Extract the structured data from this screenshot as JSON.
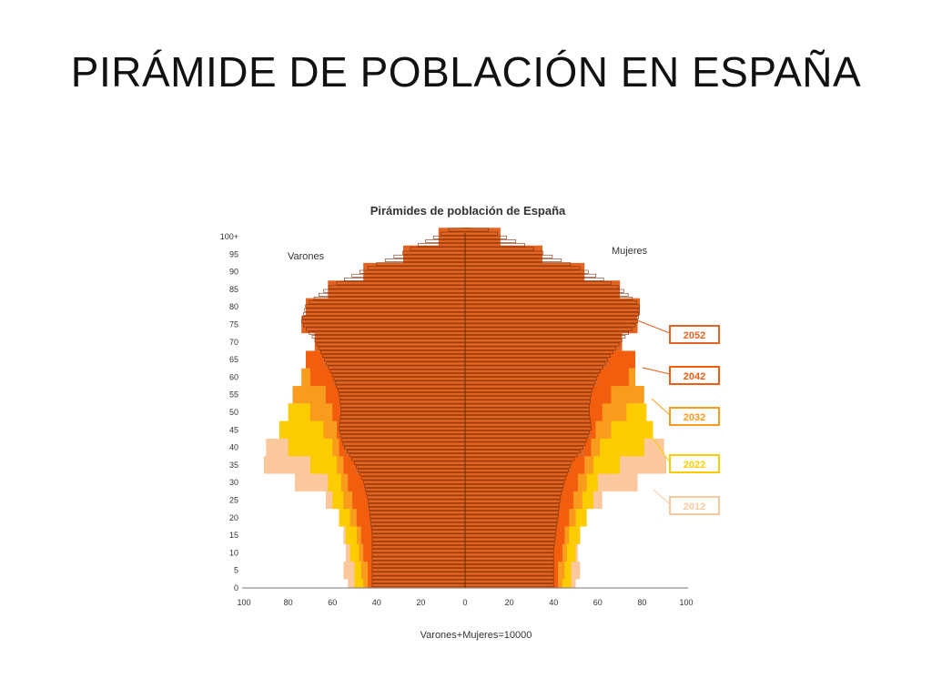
{
  "slide": {
    "title": "PIRÁMIDE DE POBLACIÓN EN ESPAÑA"
  },
  "chart_data": {
    "type": "population-pyramid",
    "title": "Pirámides de población de España",
    "left_label": "Varones",
    "right_label": "Mujeres",
    "xlabel": "Varones+Mujeres=10000",
    "xlim": [
      0,
      100
    ],
    "x_ticks": [
      "100",
      "80",
      "60",
      "40",
      "20",
      "0",
      "20",
      "40",
      "60",
      "80",
      "100"
    ],
    "y_ticks": [
      "0",
      "5",
      "10",
      "15",
      "20",
      "25",
      "30",
      "35",
      "40",
      "45",
      "50",
      "55",
      "60",
      "65",
      "70",
      "75",
      "80",
      "85",
      "90",
      "95",
      "100+"
    ],
    "ages": [
      0,
      5,
      10,
      15,
      20,
      25,
      30,
      35,
      40,
      45,
      50,
      55,
      60,
      65,
      70,
      75,
      80,
      85,
      90,
      95,
      100
    ],
    "legend_position": "right",
    "series": [
      {
        "name": "2012",
        "color": "#FBC89E",
        "male": [
          53,
          55,
          54,
          55,
          57,
          63,
          77,
          91,
          90,
          80,
          70,
          62,
          55,
          46,
          36,
          24,
          16,
          10,
          6,
          3,
          1
        ],
        "female": [
          50,
          52,
          51,
          52,
          55,
          62,
          78,
          91,
          90,
          80,
          71,
          64,
          58,
          51,
          44,
          34,
          26,
          18,
          11,
          5,
          2
        ]
      },
      {
        "name": "2022",
        "color": "#FDCC00",
        "male": [
          50,
          50,
          52,
          54,
          57,
          60,
          62,
          70,
          80,
          84,
          80,
          74,
          64,
          54,
          42,
          30,
          20,
          12,
          7,
          3,
          1
        ],
        "female": [
          48,
          48,
          50,
          52,
          55,
          58,
          60,
          70,
          81,
          85,
          82,
          76,
          67,
          58,
          48,
          38,
          28,
          19,
          11,
          5,
          2
        ]
      },
      {
        "name": "2032",
        "color": "#F99B1C",
        "male": [
          46,
          47,
          48,
          49,
          52,
          55,
          56,
          58,
          60,
          64,
          70,
          78,
          74,
          63,
          50,
          36,
          24,
          15,
          8,
          4,
          1
        ],
        "female": [
          44,
          45,
          46,
          47,
          50,
          53,
          55,
          58,
          61,
          66,
          73,
          81,
          77,
          67,
          56,
          44,
          33,
          22,
          13,
          6,
          2
        ]
      },
      {
        "name": "2042",
        "color": "#F25E0D",
        "male": [
          44,
          44,
          46,
          47,
          49,
          51,
          53,
          55,
          57,
          58,
          60,
          63,
          70,
          72,
          60,
          45,
          30,
          19,
          10,
          5,
          1
        ],
        "female": [
          42,
          42,
          44,
          45,
          47,
          49,
          51,
          54,
          57,
          59,
          62,
          66,
          74,
          77,
          68,
          55,
          41,
          28,
          16,
          7,
          2
        ]
      },
      {
        "name": "2052",
        "color": "#E36420",
        "male": [
          42,
          42,
          42,
          42,
          43,
          44,
          46,
          50,
          55,
          57,
          56,
          57,
          60,
          64,
          68,
          74,
          72,
          62,
          46,
          28,
          12
        ],
        "female": [
          40,
          40,
          40,
          41,
          42,
          43,
          45,
          48,
          54,
          57,
          56,
          57,
          60,
          65,
          71,
          78,
          79,
          70,
          54,
          35,
          16
        ]
      }
    ]
  }
}
